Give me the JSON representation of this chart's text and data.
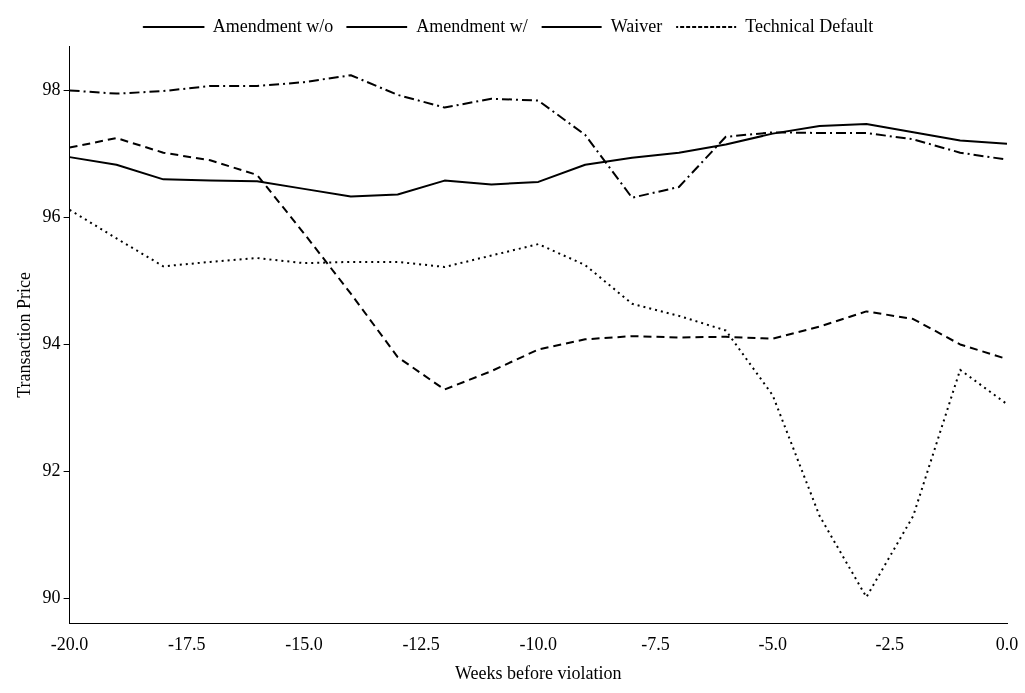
{
  "chart_data": {
    "type": "line",
    "xlabel": "Weeks before violation",
    "ylabel": "Transaction Price",
    "x": [
      -20,
      -19,
      -18,
      -17,
      -16,
      -15,
      -14,
      -13,
      -12,
      -11,
      -10,
      -9,
      -8,
      -7,
      -6,
      -5,
      -4,
      -3,
      -2,
      -1,
      0
    ],
    "series": [
      {
        "name": "Amendment w/o",
        "color": "#000000",
        "line_style": "solid",
        "values": [
          96.95,
          96.83,
          96.6,
          96.58,
          96.57,
          96.45,
          96.33,
          96.36,
          96.58,
          96.52,
          96.56,
          96.83,
          96.94,
          97.02,
          97.15,
          97.32,
          97.44,
          97.47,
          97.34,
          97.21,
          97.16
        ]
      },
      {
        "name": "Amendment w/",
        "color": "#000000",
        "line_style": "dashed",
        "values": [
          97.1,
          97.25,
          97.02,
          96.9,
          96.67,
          95.75,
          94.8,
          93.8,
          93.29,
          93.58,
          93.92,
          94.08,
          94.13,
          94.11,
          94.12,
          94.09,
          94.28,
          94.52,
          94.4,
          94.0,
          93.77
        ]
      },
      {
        "name": "Waiver",
        "color": "#000000",
        "line_style": "dashdot",
        "values": [
          98.0,
          97.95,
          97.99,
          98.07,
          98.07,
          98.13,
          98.24,
          97.93,
          97.73,
          97.87,
          97.84,
          97.3,
          96.31,
          96.48,
          97.27,
          97.34,
          97.33,
          97.33,
          97.23,
          97.02,
          96.91
        ]
      },
      {
        "name": "Technical Default",
        "color": "#000000",
        "line_style": "dotted",
        "values": [
          96.12,
          95.67,
          95.23,
          95.3,
          95.36,
          95.28,
          95.3,
          95.3,
          95.22,
          95.4,
          95.58,
          95.25,
          94.64,
          94.45,
          94.22,
          93.2,
          91.3,
          90.02,
          91.3,
          93.6,
          93.06
        ]
      }
    ],
    "xlim": [
      -20,
      0
    ],
    "xticks": [
      {
        "value": -20,
        "label": "-20.0"
      },
      {
        "value": -17.5,
        "label": "-17.5"
      },
      {
        "value": -15,
        "label": "-15.0"
      },
      {
        "value": -12.5,
        "label": "-12.5"
      },
      {
        "value": -10,
        "label": "-10.0"
      },
      {
        "value": -7.5,
        "label": "-7.5"
      },
      {
        "value": -5,
        "label": "-5.0"
      },
      {
        "value": -2.5,
        "label": "-2.5"
      },
      {
        "value": 0,
        "label": "0.0"
      }
    ],
    "ylim": [
      89.6,
      98.7
    ],
    "yticks": [
      90,
      92,
      94,
      96,
      98
    ],
    "grid": false,
    "legend": "top",
    "marker": "none"
  }
}
